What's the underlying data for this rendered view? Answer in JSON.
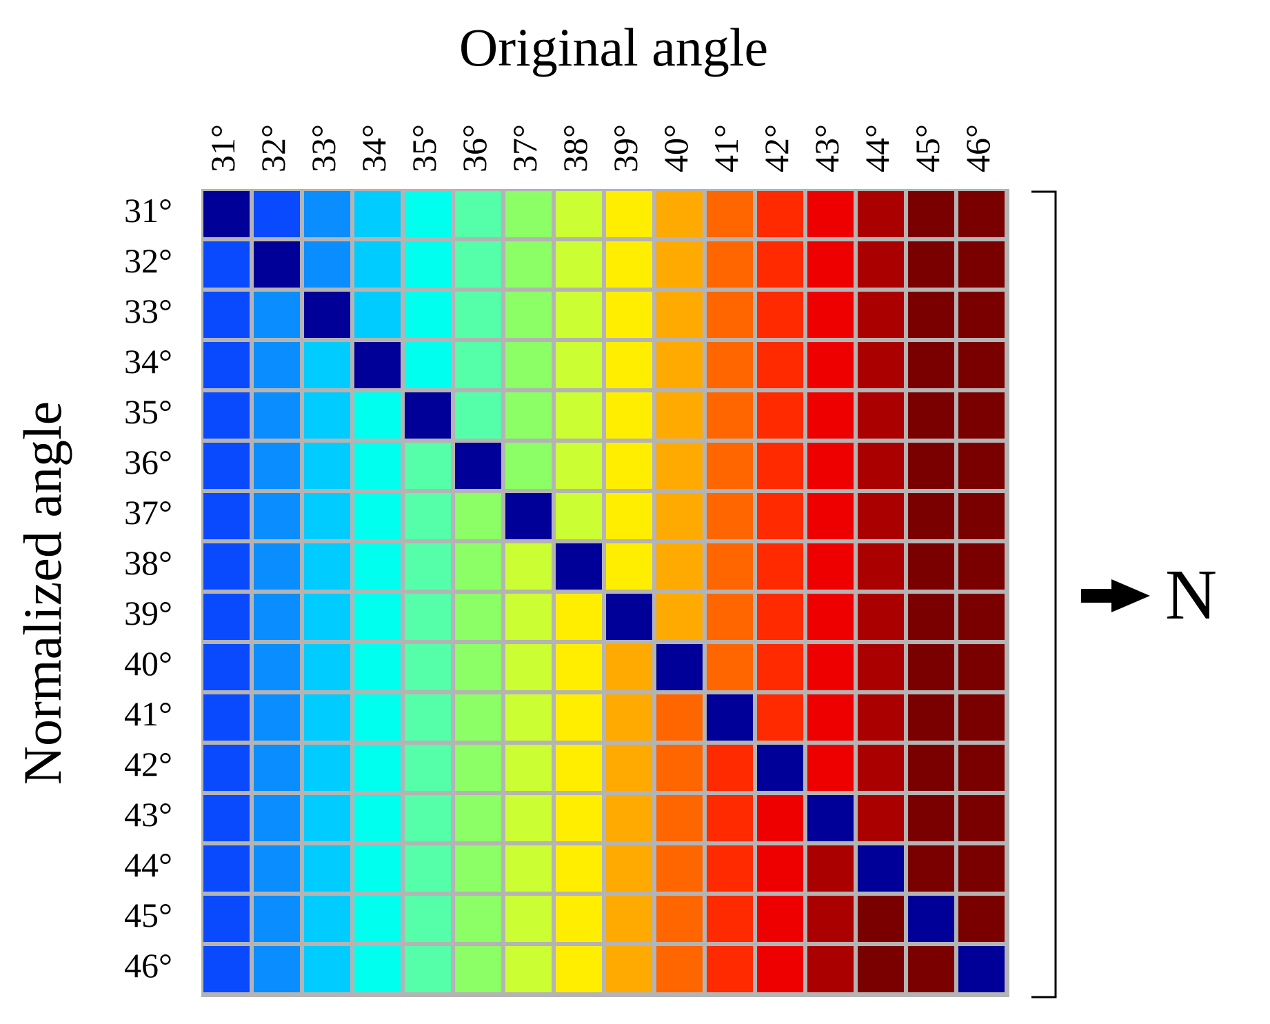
{
  "title": "Original angle",
  "y_axis_label": "Normalized angle",
  "column_labels": [
    "31°",
    "32°",
    "33°",
    "34°",
    "35°",
    "36°",
    "37°",
    "38°",
    "39°",
    "40°",
    "41°",
    "42°",
    "43°",
    "44°",
    "45°",
    "46°"
  ],
  "row_labels": [
    "31°",
    "32°",
    "33°",
    "34°",
    "35°",
    "36°",
    "37°",
    "38°",
    "39°",
    "40°",
    "41°",
    "42°",
    "43°",
    "44°",
    "45°",
    "46°"
  ],
  "result_label": "N",
  "colors": {
    "diagonal": "#000099",
    "grid_line": "#b4b4b4",
    "columns": [
      "#0a0aff",
      "#0a4aff",
      "#0a8eff",
      "#00ccff",
      "#00ffee",
      "#55ffaa",
      "#8cff66",
      "#ccff33",
      "#ffee00",
      "#ffaa00",
      "#ff6600",
      "#ff2a00",
      "#ee0000",
      "#aa0000",
      "#7a0000",
      "#7a0000"
    ]
  },
  "cell_color_rule": "cell(row r, column c) = diagonal if r == c; columns[c] if c > r; columns[c+1] if c < r"
}
